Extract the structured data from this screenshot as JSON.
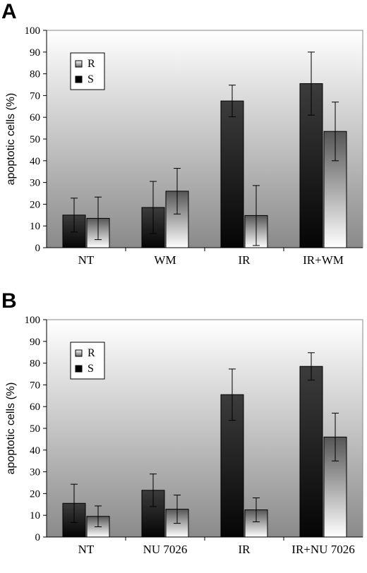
{
  "chart_data": [
    {
      "panel_label": "A",
      "type": "bar",
      "ylabel": "apoptotic cells (%)",
      "ylim": [
        0,
        100
      ],
      "yticks": [
        0,
        10,
        20,
        30,
        40,
        50,
        60,
        70,
        80,
        90,
        100
      ],
      "categories": [
        "NT",
        "WM",
        "IR",
        "IR+WM"
      ],
      "legend": {
        "placement": "top-left",
        "entries": [
          "R",
          "S"
        ]
      },
      "series": [
        {
          "name": "S",
          "values": [
            15,
            18.5,
            67.5,
            75.5
          ],
          "errors": [
            7.8,
            12,
            7.3,
            14.5
          ]
        },
        {
          "name": "R",
          "values": [
            13.5,
            26,
            14.8,
            53.5
          ],
          "errors": [
            9.8,
            10.5,
            13.8,
            13.5
          ]
        }
      ],
      "grid": false
    },
    {
      "panel_label": "B",
      "type": "bar",
      "ylabel": "apoptotic cells (%)",
      "ylim": [
        0,
        100
      ],
      "yticks": [
        0,
        10,
        20,
        30,
        40,
        50,
        60,
        70,
        80,
        90,
        100
      ],
      "categories": [
        "NT",
        "NU 7026",
        "IR",
        "IR+NU 7026"
      ],
      "legend": {
        "placement": "top-left",
        "entries": [
          "R",
          "S"
        ]
      },
      "series": [
        {
          "name": "S",
          "values": [
            15.5,
            21.5,
            65.5,
            78.5
          ],
          "errors": [
            8.8,
            7.5,
            11.8,
            6.3
          ]
        },
        {
          "name": "R",
          "values": [
            9.5,
            12.8,
            12.5,
            46
          ],
          "errors": [
            4.8,
            6.5,
            5.5,
            11
          ]
        }
      ],
      "grid": false
    }
  ]
}
